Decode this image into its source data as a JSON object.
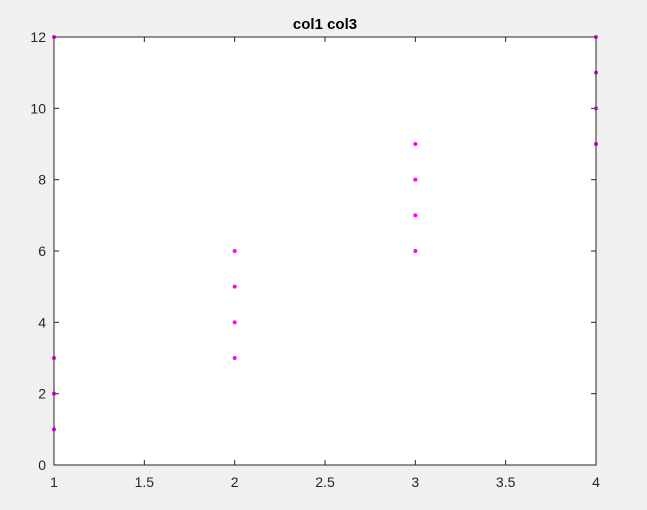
{
  "window": {
    "background": "#f0f0f0"
  },
  "chart_data": {
    "type": "scatter",
    "title": "col1 col3",
    "xlabel": "",
    "ylabel": "",
    "xlim": [
      1,
      4
    ],
    "ylim": [
      0,
      12
    ],
    "x_ticks": [
      1,
      1.5,
      2,
      2.5,
      3,
      3.5,
      4
    ],
    "x_tick_labels": [
      "1",
      "1.5",
      "2",
      "2.5",
      "3",
      "3.5",
      "4"
    ],
    "y_ticks": [
      0,
      2,
      4,
      6,
      8,
      10,
      12
    ],
    "y_tick_labels": [
      "0",
      "2",
      "4",
      "6",
      "8",
      "10",
      "12"
    ],
    "grid": false,
    "legend": "none",
    "marker_color": "#ff00ff",
    "axes_background": "#ffffff",
    "axes_color": "#262626",
    "series": [
      {
        "points": [
          {
            "x": 1,
            "y": 1
          },
          {
            "x": 1,
            "y": 2
          },
          {
            "x": 1,
            "y": 3
          },
          {
            "x": 1,
            "y": 12
          },
          {
            "x": 2,
            "y": 3
          },
          {
            "x": 2,
            "y": 4
          },
          {
            "x": 2,
            "y": 5
          },
          {
            "x": 2,
            "y": 6
          },
          {
            "x": 3,
            "y": 6
          },
          {
            "x": 3,
            "y": 7
          },
          {
            "x": 3,
            "y": 8
          },
          {
            "x": 3,
            "y": 9
          },
          {
            "x": 4,
            "y": 9
          },
          {
            "x": 4,
            "y": 10
          },
          {
            "x": 4,
            "y": 11
          },
          {
            "x": 4,
            "y": 12
          }
        ]
      }
    ]
  }
}
